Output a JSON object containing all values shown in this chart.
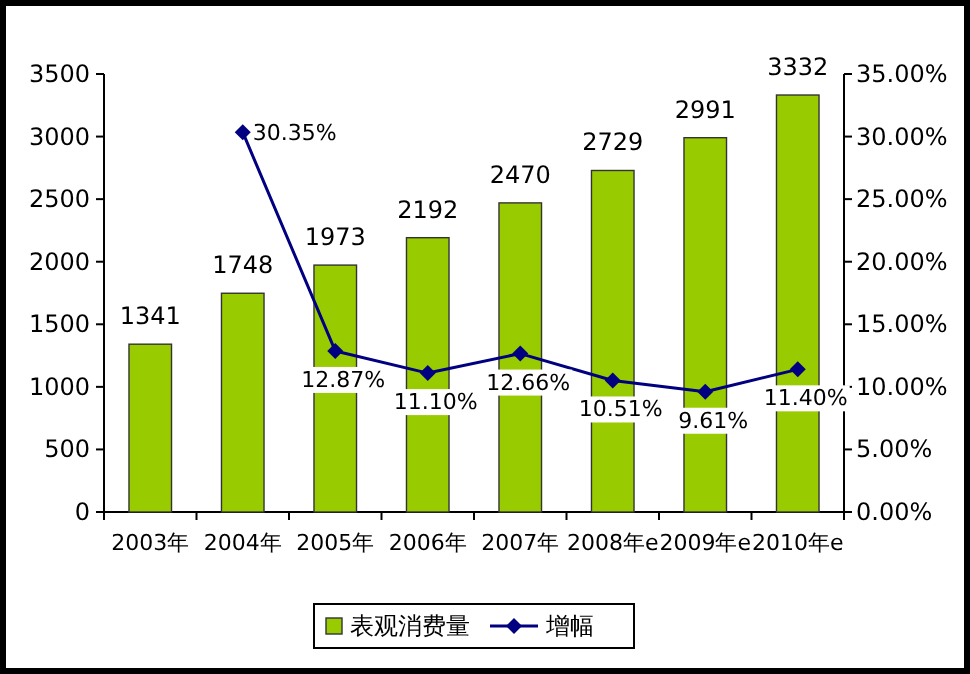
{
  "chart_data": {
    "type": "bar",
    "categories": [
      "2003年",
      "2004年",
      "2005年",
      "2006年",
      "2007年",
      "2008年e",
      "2009年e",
      "2010年e"
    ],
    "series": [
      {
        "name": "表观消费量",
        "color": "#99cc00",
        "values": [
          1341,
          1748,
          1973,
          2192,
          2470,
          2729,
          2991,
          3332
        ],
        "value_labels": [
          "1341",
          "1748",
          "1973",
          "2192",
          "2470",
          "2729",
          "2991",
          "3332"
        ]
      },
      {
        "name": "增幅",
        "type": "line",
        "axis": "y2",
        "color": "#000080",
        "values": [
          null,
          30.35,
          12.87,
          11.1,
          12.66,
          10.51,
          9.61,
          11.4
        ],
        "value_labels": [
          null,
          "30.35%",
          "12.87%",
          "11.10%",
          "12.66%",
          "10.51%",
          "9.61%",
          "11.40%"
        ]
      }
    ],
    "ylim": [
      0,
      3500
    ],
    "yticks": [
      0,
      500,
      1000,
      1500,
      2000,
      2500,
      3000,
      3500
    ],
    "y2lim": [
      0,
      35
    ],
    "y2ticks": [
      {
        "value": 0,
        "label": "0.00%"
      },
      {
        "value": 5,
        "label": "5.00%"
      },
      {
        "value": 10,
        "label": "10.00%"
      },
      {
        "value": 15,
        "label": "15.00%"
      },
      {
        "value": 20,
        "label": "20.00%"
      },
      {
        "value": 25,
        "label": "25.00%"
      },
      {
        "value": 30,
        "label": "30.00%"
      },
      {
        "value": 35,
        "label": "35.00%"
      }
    ],
    "marker": "diamond",
    "legend": "bottom",
    "grid": false
  }
}
